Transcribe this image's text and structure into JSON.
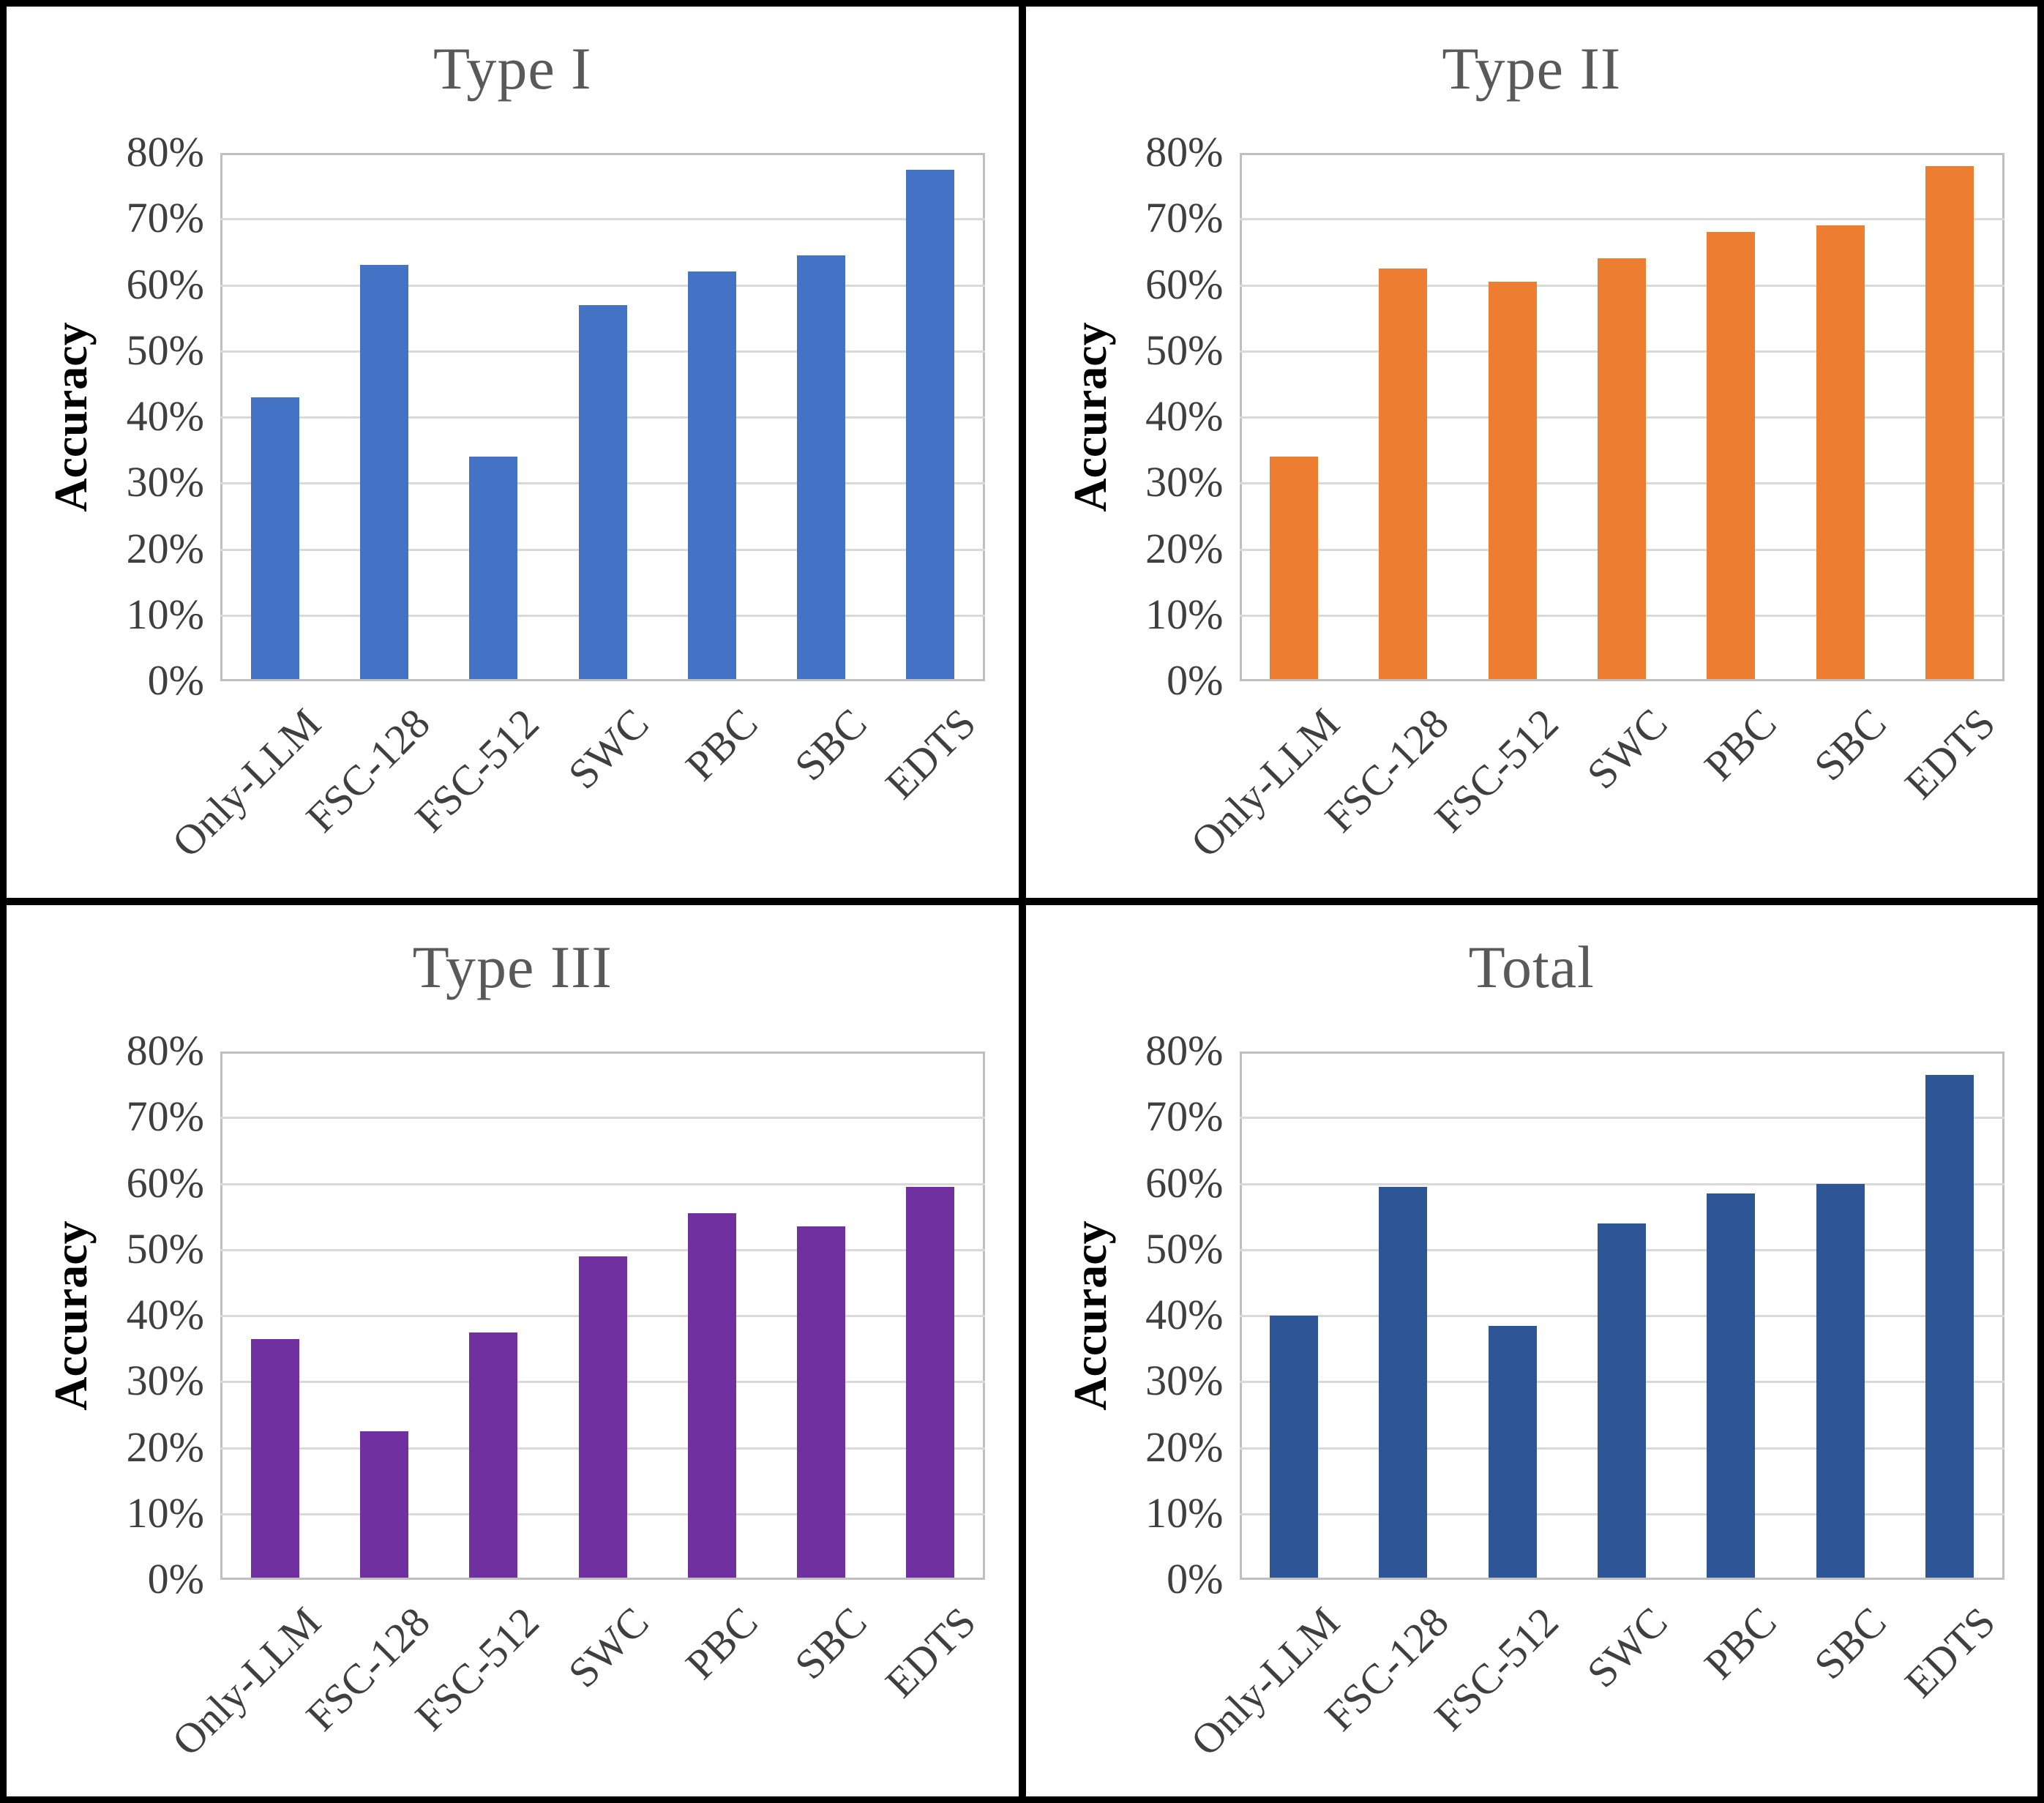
{
  "figure": {
    "ylabel": "Accuracy",
    "ytick_labels": [
      "0%",
      "10%",
      "20%",
      "30%",
      "40%",
      "50%",
      "60%",
      "70%",
      "80%"
    ],
    "categories": [
      "Only-LLM",
      "FSC-128",
      "FSC-512",
      "SWC",
      "PBC",
      "SBC",
      "EDTS"
    ]
  },
  "chart_data": [
    {
      "type": "bar",
      "title": "Type I",
      "xlabel": "",
      "ylabel": "Accuracy",
      "ylim": [
        0,
        80
      ],
      "grid": true,
      "legend": false,
      "categories": [
        "Only-LLM",
        "FSC-128",
        "FSC-512",
        "SWC",
        "PBC",
        "SBC",
        "EDTS"
      ],
      "values": [
        43,
        63,
        34,
        57,
        62,
        64.5,
        77.5
      ],
      "bar_color": "#4472C4"
    },
    {
      "type": "bar",
      "title": "Type II",
      "xlabel": "",
      "ylabel": "Accuracy",
      "ylim": [
        0,
        80
      ],
      "grid": true,
      "legend": false,
      "categories": [
        "Only-LLM",
        "FSC-128",
        "FSC-512",
        "SWC",
        "PBC",
        "SBC",
        "EDTS"
      ],
      "values": [
        34,
        62.5,
        60.5,
        64,
        68,
        69,
        78
      ],
      "bar_color": "#ED7D31"
    },
    {
      "type": "bar",
      "title": "Type III",
      "xlabel": "",
      "ylabel": "Accuracy",
      "ylim": [
        0,
        80
      ],
      "grid": true,
      "legend": false,
      "categories": [
        "Only-LLM",
        "FSC-128",
        "FSC-512",
        "SWC",
        "PBC",
        "SBC",
        "EDTS"
      ],
      "values": [
        36.5,
        22.5,
        37.5,
        49,
        55.5,
        53.5,
        59.5
      ],
      "bar_color": "#7030A0"
    },
    {
      "type": "bar",
      "title": "Total",
      "xlabel": "",
      "ylabel": "Accuracy",
      "ylim": [
        0,
        80
      ],
      "grid": true,
      "legend": false,
      "categories": [
        "Only-LLM",
        "FSC-128",
        "FSC-512",
        "SWC",
        "PBC",
        "SBC",
        "EDTS"
      ],
      "values": [
        40,
        59.5,
        38.5,
        54,
        58.5,
        60,
        76.5
      ],
      "bar_color": "#2E5596"
    }
  ],
  "colors": {
    "grid_line": "#d9d9d9",
    "plot_border": "#bfbfbf",
    "title_text": "#595959",
    "tick_text": "#3f3f3f",
    "axis_label_text": "#000000",
    "frame": "#000000",
    "background": "#ffffff"
  }
}
